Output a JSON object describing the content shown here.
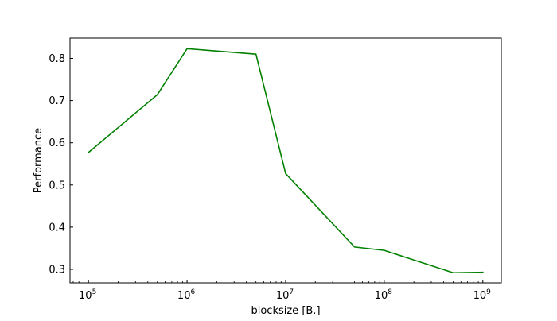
{
  "chart_data": {
    "type": "line",
    "title": "",
    "xlabel": "blocksize [B.]",
    "ylabel": "Performance",
    "xscale": "log",
    "xlim": [
      65000,
      1540000000
    ],
    "ylim": [
      0.268,
      0.848
    ],
    "grid": false,
    "legend": "none",
    "series": [
      {
        "color": "#008000",
        "x": [
          100000,
          500000,
          1000000,
          5000000,
          10000000,
          50000000,
          100000000,
          500000000,
          1000000000
        ],
        "y": [
          0.577,
          0.714,
          0.823,
          0.81,
          0.527,
          0.353,
          0.345,
          0.292,
          0.293
        ]
      }
    ],
    "xticks": [
      {
        "base": "10",
        "exp": "5",
        "value": 100000
      },
      {
        "base": "10",
        "exp": "6",
        "value": 1000000
      },
      {
        "base": "10",
        "exp": "7",
        "value": 10000000
      },
      {
        "base": "10",
        "exp": "8",
        "value": 100000000
      },
      {
        "base": "10",
        "exp": "9",
        "value": 1000000000
      }
    ],
    "yticks": [
      {
        "label": "0.3",
        "value": 0.3
      },
      {
        "label": "0.4",
        "value": 0.4
      },
      {
        "label": "0.5",
        "value": 0.5
      },
      {
        "label": "0.6",
        "value": 0.6
      },
      {
        "label": "0.7",
        "value": 0.7
      },
      {
        "label": "0.8",
        "value": 0.8
      }
    ]
  }
}
